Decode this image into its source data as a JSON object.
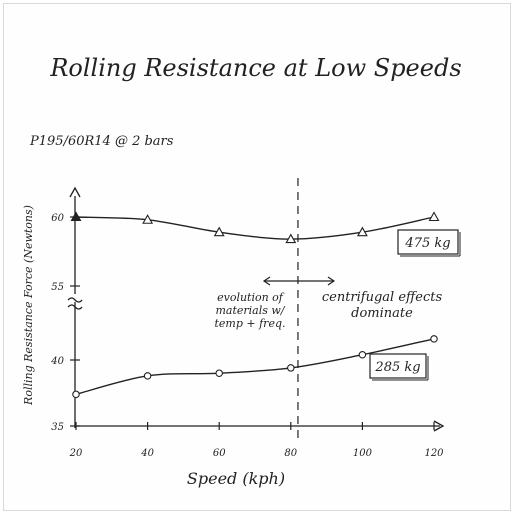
{
  "chart_data": {
    "type": "line",
    "title": "Rolling Resistance at Low Speeds",
    "subtitle": "P195/60R14 @ 2 bars",
    "xlabel": "Speed (kph)",
    "ylabel": "Rolling Resistance Force (Newtons)",
    "x_ticks": [
      "20",
      "40",
      "60",
      "80",
      "100",
      "120"
    ],
    "y_ticks": [
      "35",
      "40",
      "55",
      "60"
    ],
    "axis_break": "between 40 and 55 on the y-axis",
    "x": [
      20,
      40,
      60,
      80,
      100,
      120
    ],
    "series": [
      {
        "name": "475 kg",
        "marker": "triangle",
        "values": [
          60.0,
          59.8,
          58.9,
          58.4,
          58.9,
          60.0
        ]
      },
      {
        "name": "285 kg",
        "marker": "circle",
        "values": [
          37.4,
          38.8,
          39.0,
          39.4,
          40.4,
          41.6
        ]
      }
    ],
    "divider_x": 82,
    "annotations": {
      "left": [
        "evolution of",
        "materials w/",
        "temp + freq."
      ],
      "right": [
        "centrifugal effects",
        "dominate"
      ]
    },
    "xlim": [
      20,
      120
    ],
    "ylim": [
      35,
      61
    ]
  }
}
